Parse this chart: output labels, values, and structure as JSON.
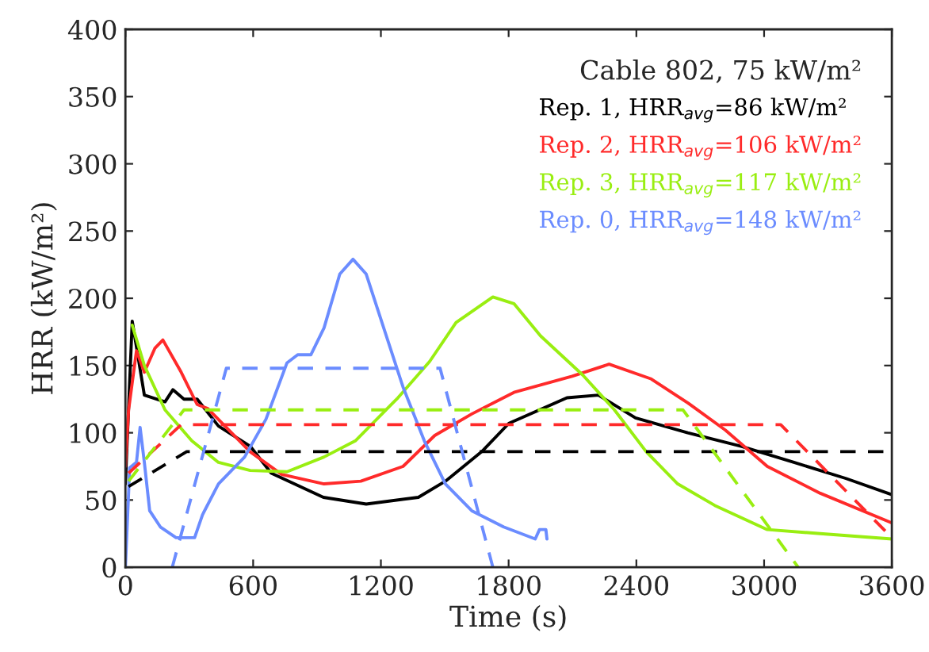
{
  "chart_data": {
    "type": "line",
    "xlabel": "Time (s)",
    "ylabel": "HRR (kW/m²)",
    "legend_title": "Cable 802, 75 kW/m²",
    "legend": "top right",
    "grid": false,
    "xlim": [
      0,
      3600
    ],
    "xticks": [
      0,
      600,
      1200,
      1800,
      2400,
      3000,
      3600
    ],
    "ylim": [
      0,
      400
    ],
    "yticks": [
      0,
      50,
      100,
      150,
      200,
      250,
      300,
      350,
      400
    ],
    "series": [
      {
        "name": "Rep. 1, HRR$_{avg}$=86 kW/m²",
        "color": "#000000",
        "line_style": "solid",
        "x": [
          0,
          32,
          89,
          186,
          223,
          275,
          337,
          437,
          586,
          685,
          930,
          1131,
          1376,
          1503,
          1674,
          1801,
          2074,
          2222,
          2396,
          2641,
          2892,
          3140,
          3385,
          3600
        ],
        "values": [
          62,
          183,
          128,
          123,
          132,
          125,
          125,
          105,
          90,
          70,
          52,
          47,
          52,
          64,
          86,
          107,
          126,
          128,
          111,
          100,
          90,
          78,
          66,
          54
        ]
      },
      {
        "name": "Rep. 2, HRR$_{avg}$=106 kW/m²",
        "color": "#ff2a2a",
        "line_style": "solid",
        "x": [
          0,
          15,
          52,
          89,
          139,
          176,
          262,
          337,
          387,
          461,
          585,
          734,
          933,
          1106,
          1304,
          1453,
          1627,
          1825,
          2098,
          2272,
          2470,
          2644,
          2818,
          3015,
          3264,
          3600
        ],
        "values": [
          75,
          117,
          161,
          145,
          163,
          169,
          145,
          121,
          118,
          106,
          86,
          69,
          62,
          64,
          75,
          98,
          114,
          130,
          142,
          151,
          140,
          122,
          102,
          75,
          55,
          33
        ]
      },
      {
        "name": "Rep. 3, HRR$_{avg}$=117 kW/m²",
        "color": "#99ee11",
        "line_style": "solid",
        "x": [
          32,
          89,
          186,
          312,
          437,
          586,
          759,
          933,
          1080,
          1280,
          1429,
          1553,
          1726,
          1825,
          1950,
          2148,
          2297,
          2446,
          2594,
          2768,
          3015,
          3264,
          3600
        ],
        "values": [
          180,
          150,
          117,
          94,
          78,
          72,
          71,
          82,
          94,
          126,
          153,
          182,
          201,
          196,
          172,
          143,
          117,
          86,
          62,
          46,
          28,
          25,
          21
        ]
      },
      {
        "name": "Rep. 0, HRR$_{avg}$=148 kW/m²",
        "color": "#6b8cff",
        "line_style": "solid",
        "x": [
          0,
          20,
          52,
          69,
          89,
          114,
          164,
          238,
          325,
          362,
          437,
          560,
          660,
          759,
          809,
          871,
          933,
          1007,
          1069,
          1131,
          1205,
          1304,
          1404,
          1503,
          1627,
          1776,
          1925,
          1945,
          1975,
          1980
        ],
        "values": [
          0,
          74,
          78,
          104,
          78,
          42,
          30,
          22,
          22,
          39,
          62,
          82,
          110,
          152,
          158,
          158,
          178,
          218,
          229,
          218,
          182,
          134,
          94,
          62,
          42,
          30,
          21,
          28,
          28,
          21
        ]
      },
      {
        "color": "#000000",
        "line_style": "dashed",
        "x": [
          15,
          288,
          3600
        ],
        "values": [
          60,
          86,
          86
        ]
      },
      {
        "color": "#ff2a2a",
        "line_style": "dashed",
        "x": [
          15,
          262,
          3078,
          3600
        ],
        "values": [
          70,
          106,
          106,
          22
        ]
      },
      {
        "color": "#99ee11",
        "line_style": "dashed",
        "x": [
          15,
          275,
          2619,
          3160
        ],
        "values": [
          64,
          117,
          117,
          0
        ]
      },
      {
        "color": "#6b8cff",
        "line_style": "dashed",
        "x": [
          220,
          474,
          1478,
          1726
        ],
        "values": [
          0,
          148,
          148,
          0
        ]
      }
    ]
  }
}
